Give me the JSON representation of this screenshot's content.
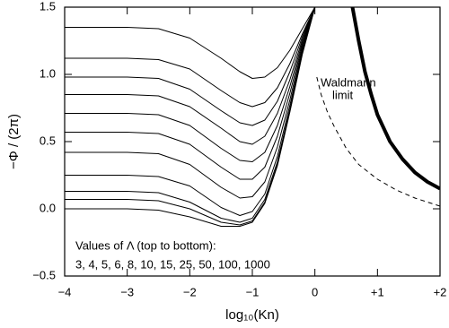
{
  "chart_data": {
    "type": "line",
    "xlabel": "log₁₀(Kn)",
    "ylabel": "−Φ / (2π)",
    "annotations": [
      "Waldmann",
      "limit",
      "Values of Λ (top to bottom):",
      "3,  4,  5,  6,  8,  10,  15,  25,  50,  100,  1000"
    ],
    "xlim": [
      -4,
      2
    ],
    "ylim": [
      -0.5,
      1.5
    ],
    "xticks": [
      {
        "value": -4,
        "label": "−4"
      },
      {
        "value": -3,
        "label": "−3"
      },
      {
        "value": -2,
        "label": "−2"
      },
      {
        "value": -1,
        "label": "−1"
      },
      0,
      {
        "value": 1,
        "label": "+1"
      },
      {
        "value": 2,
        "label": "+2"
      }
    ],
    "yticks": [
      {
        "value": -0.5,
        "label": "−0.5"
      },
      {
        "value": 0,
        "label": "0.0"
      },
      {
        "value": 0.5,
        "label": "0.5"
      },
      {
        "value": 1,
        "label": "1.0"
      },
      {
        "value": 1.5,
        "label": "1.5"
      }
    ],
    "series": [
      {
        "color": "#000",
        "linewidth": 1,
        "x": [
          -4,
          -3,
          -2.5,
          -2,
          -1.5,
          -1.2,
          -1,
          -0.8,
          -0.6,
          -0.4,
          -0.2,
          0
        ],
        "values": [
          1.35,
          1.35,
          1.34,
          1.27,
          1.12,
          1.02,
          0.97,
          0.98,
          1.05,
          1.18,
          1.34,
          1.5
        ]
      },
      {
        "color": "#000",
        "linewidth": 1,
        "x": [
          -4,
          -3,
          -2.5,
          -2,
          -1.5,
          -1.2,
          -1,
          -0.8,
          -0.6,
          -0.4,
          -0.2,
          0
        ],
        "values": [
          1.12,
          1.12,
          1.11,
          1.04,
          0.88,
          0.79,
          0.76,
          0.79,
          0.9,
          1.08,
          1.3,
          1.5
        ]
      },
      {
        "color": "#000",
        "linewidth": 1,
        "x": [
          -4,
          -3,
          -2.5,
          -2,
          -1.5,
          -1.2,
          -1,
          -0.8,
          -0.6,
          -0.4,
          -0.2,
          0
        ],
        "values": [
          0.98,
          0.98,
          0.97,
          0.89,
          0.73,
          0.64,
          0.62,
          0.66,
          0.8,
          1.02,
          1.28,
          1.5
        ]
      },
      {
        "color": "#000",
        "linewidth": 1,
        "x": [
          -4,
          -3,
          -2.5,
          -2,
          -1.5,
          -1.2,
          -1,
          -0.8,
          -0.6,
          -0.4,
          -0.2,
          0
        ],
        "values": [
          0.85,
          0.85,
          0.84,
          0.76,
          0.6,
          0.5,
          0.48,
          0.54,
          0.71,
          0.96,
          1.26,
          1.5
        ]
      },
      {
        "color": "#000",
        "linewidth": 1,
        "x": [
          -4,
          -3,
          -2.5,
          -2,
          -1.5,
          -1.2,
          -1,
          -0.8,
          -0.6,
          -0.4,
          -0.2,
          0
        ],
        "values": [
          0.71,
          0.71,
          0.7,
          0.62,
          0.45,
          0.36,
          0.35,
          0.42,
          0.62,
          0.91,
          1.24,
          1.5
        ]
      },
      {
        "color": "#000",
        "linewidth": 1,
        "x": [
          -4,
          -3,
          -2.5,
          -2,
          -1.5,
          -1.2,
          -1,
          -0.8,
          -0.6,
          -0.4,
          -0.2,
          0
        ],
        "values": [
          0.57,
          0.57,
          0.56,
          0.48,
          0.31,
          0.22,
          0.22,
          0.31,
          0.54,
          0.86,
          1.22,
          1.5
        ]
      },
      {
        "color": "#000",
        "linewidth": 1,
        "x": [
          -4,
          -3,
          -2.5,
          -2,
          -1.5,
          -1.2,
          -1,
          -0.8,
          -0.6,
          -0.4,
          -0.2,
          0
        ],
        "values": [
          0.42,
          0.42,
          0.41,
          0.33,
          0.16,
          0.08,
          0.09,
          0.2,
          0.46,
          0.81,
          1.2,
          1.5
        ]
      },
      {
        "color": "#000",
        "linewidth": 1,
        "x": [
          -4,
          -3,
          -2.5,
          -2,
          -1.5,
          -1.2,
          -1,
          -0.8,
          -0.6,
          -0.4,
          -0.2,
          0
        ],
        "values": [
          0.25,
          0.25,
          0.24,
          0.17,
          0.01,
          -0.05,
          -0.02,
          0.11,
          0.39,
          0.77,
          1.18,
          1.5
        ]
      },
      {
        "color": "#000",
        "linewidth": 1,
        "x": [
          -4,
          -3,
          -2.5,
          -2,
          -1.5,
          -1.2,
          -1,
          -0.8,
          -0.6,
          -0.4,
          -0.2,
          0
        ],
        "values": [
          0.13,
          0.13,
          0.12,
          0.05,
          -0.07,
          -0.1,
          -0.07,
          0.07,
          0.35,
          0.74,
          1.17,
          1.5
        ]
      },
      {
        "color": "#000",
        "linewidth": 1,
        "x": [
          -4,
          -3,
          -2.5,
          -2,
          -1.5,
          -1.2,
          -1,
          -0.8,
          -0.6,
          -0.4,
          -0.2,
          0
        ],
        "values": [
          0.07,
          0.07,
          0.06,
          0,
          -0.1,
          -0.12,
          -0.09,
          0.05,
          0.33,
          0.73,
          1.16,
          1.5
        ]
      },
      {
        "color": "#000",
        "linewidth": 1,
        "x": [
          -4,
          -3,
          -2.5,
          -2,
          -1.5,
          -1.2,
          -1,
          -0.8,
          -0.6,
          -0.4,
          -0.2,
          0
        ],
        "values": [
          0,
          0,
          -0.01,
          -0.06,
          -0.13,
          -0.13,
          -0.1,
          0.04,
          0.32,
          0.72,
          1.15,
          1.5
        ]
      },
      {
        "color": "#000",
        "linewidth": 4,
        "x": [
          0.6,
          0.7,
          0.8,
          0.9,
          1,
          1.2,
          1.4,
          1.6,
          1.8,
          2
        ],
        "values": [
          1.5,
          1.25,
          1.02,
          0.85,
          0.7,
          0.5,
          0.37,
          0.27,
          0.2,
          0.15
        ]
      },
      {
        "color": "#000",
        "linewidth": 1,
        "dashed": true,
        "x": [
          0.03,
          0.1,
          0.2,
          0.3,
          0.5,
          0.7,
          1,
          1.3,
          1.6,
          2
        ],
        "values": [
          0.98,
          0.85,
          0.72,
          0.62,
          0.45,
          0.33,
          0.22,
          0.14,
          0.08,
          0.02
        ]
      }
    ]
  }
}
